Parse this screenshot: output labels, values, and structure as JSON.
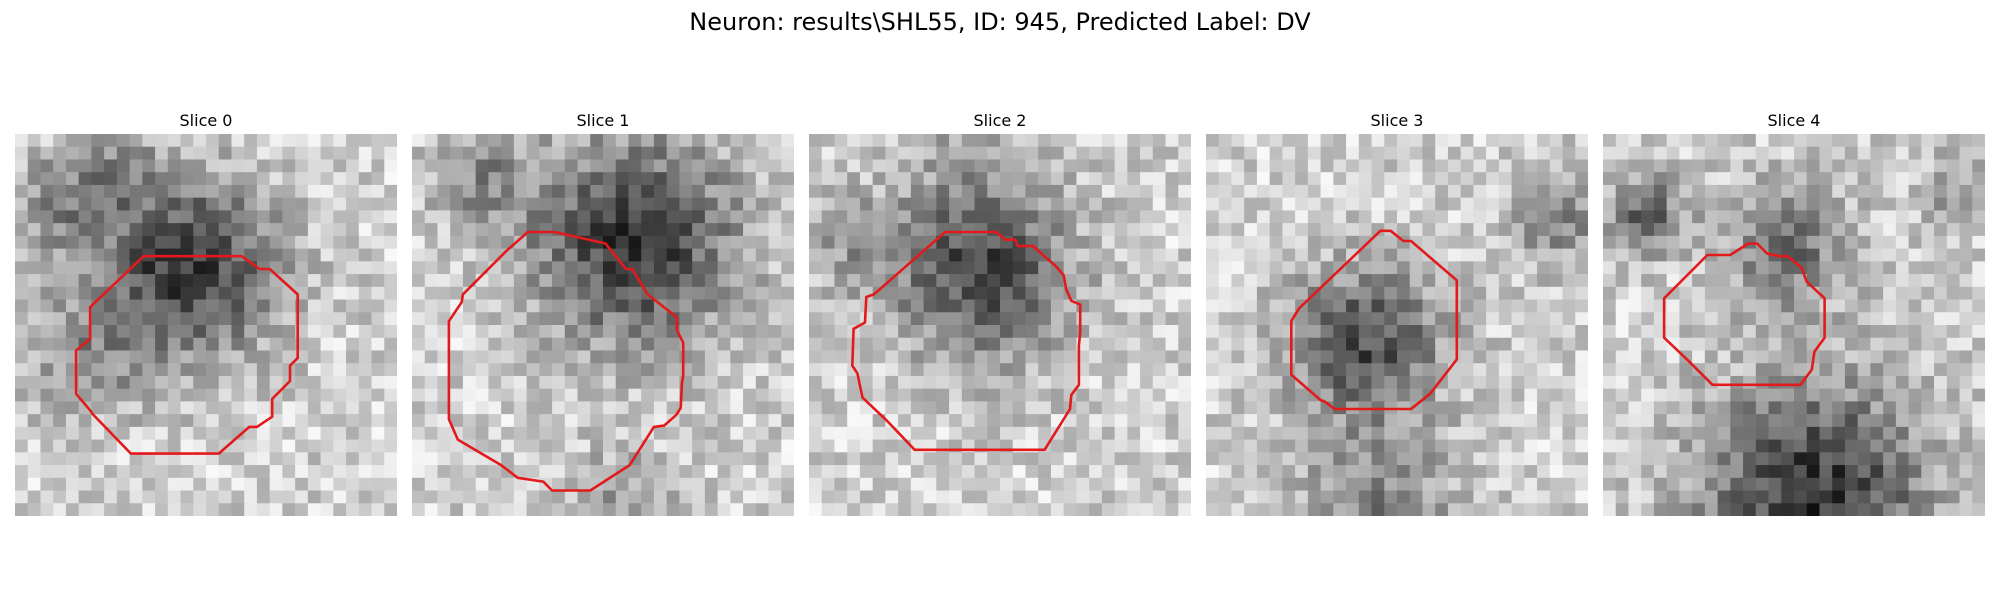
{
  "figure": {
    "title": "Neuron: results\\SHL55, ID: 945, Predicted Label: DV"
  },
  "slices": [
    {
      "title": "Slice 0"
    },
    {
      "title": "Slice 1"
    },
    {
      "title": "Slice 2"
    },
    {
      "title": "Slice 3"
    },
    {
      "title": "Slice 4"
    }
  ],
  "style": {
    "contour_color": "#e31a1c",
    "colormap": "grayscale"
  }
}
